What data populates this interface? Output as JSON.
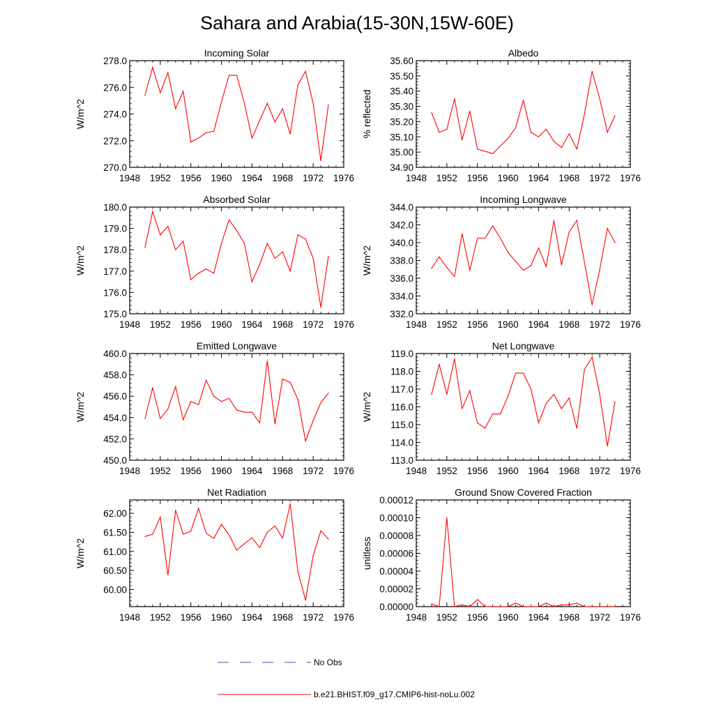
{
  "title": "Sahara and Arabia(15-30N,15W-60E)",
  "colors": {
    "model": "#ff0000",
    "obs": "#4a4aa8"
  },
  "legend": {
    "obs_label": "No Obs",
    "model_label": "b.e21.BHIST.f09_g17.CMIP6-hist-noLu.002"
  },
  "chart_data": [
    {
      "type": "line",
      "title": "Incoming Solar",
      "xlabel": "",
      "ylabel": "W/m^2",
      "xlim": [
        1948,
        1976
      ],
      "ylim": [
        270.0,
        278.0
      ],
      "xticks": [
        "1948",
        "1952",
        "1956",
        "1960",
        "1964",
        "1968",
        "1972",
        "1976"
      ],
      "yticks": [
        "270.0",
        "272.0",
        "274.0",
        "276.0",
        "278.0"
      ],
      "series": [
        {
          "x": [
            1950,
            1951,
            1952,
            1953,
            1954,
            1955,
            1956,
            1957,
            1958,
            1959,
            1960,
            1961,
            1962,
            1963,
            1964,
            1965,
            1966,
            1967,
            1968,
            1969,
            1970,
            1971,
            1972,
            1973,
            1974
          ],
          "values": [
            275.4,
            277.5,
            275.6,
            277.1,
            274.4,
            275.7,
            271.9,
            272.2,
            272.6,
            272.7,
            274.9,
            276.9,
            276.9,
            274.8,
            272.2,
            273.5,
            274.8,
            273.4,
            274.4,
            272.5,
            276.2,
            277.2,
            274.8,
            270.5,
            274.7
          ]
        }
      ]
    },
    {
      "type": "line",
      "title": "Albedo",
      "xlabel": "",
      "ylabel": "% reflected",
      "xlim": [
        1948,
        1976
      ],
      "ylim": [
        34.9,
        35.6
      ],
      "xticks": [
        "1948",
        "1952",
        "1956",
        "1960",
        "1964",
        "1968",
        "1972",
        "1976"
      ],
      "yticks": [
        "34.90",
        "35.00",
        "35.10",
        "35.20",
        "35.30",
        "35.40",
        "35.50",
        "35.60"
      ],
      "series": [
        {
          "x": [
            1950,
            1951,
            1952,
            1953,
            1954,
            1955,
            1956,
            1958,
            1960,
            1961,
            1962,
            1963,
            1964,
            1965,
            1966,
            1967,
            1968,
            1969,
            1970,
            1971,
            1972,
            1973,
            1974
          ],
          "values": [
            35.26,
            35.13,
            35.15,
            35.35,
            35.08,
            35.27,
            35.02,
            34.99,
            35.09,
            35.16,
            35.34,
            35.13,
            35.1,
            35.15,
            35.07,
            35.03,
            35.12,
            35.02,
            35.25,
            35.53,
            35.35,
            35.13,
            35.24
          ]
        }
      ]
    },
    {
      "type": "line",
      "title": "Absorbed Solar",
      "xlabel": "",
      "ylabel": "W/m^2",
      "xlim": [
        1948,
        1976
      ],
      "ylim": [
        175.0,
        180.0
      ],
      "xticks": [
        "1948",
        "1952",
        "1956",
        "1960",
        "1964",
        "1968",
        "1972",
        "1976"
      ],
      "yticks": [
        "175.0",
        "176.0",
        "177.0",
        "178.0",
        "179.0",
        "180.0"
      ],
      "series": [
        {
          "x": [
            1950,
            1951,
            1952,
            1953,
            1954,
            1955,
            1956,
            1957,
            1958,
            1959,
            1960,
            1961,
            1962,
            1963,
            1964,
            1965,
            1966,
            1967,
            1968,
            1969,
            1970,
            1971,
            1972,
            1973,
            1974
          ],
          "values": [
            178.1,
            179.8,
            178.7,
            179.1,
            178.0,
            178.4,
            176.6,
            176.9,
            177.1,
            176.9,
            178.3,
            179.4,
            178.9,
            178.3,
            176.5,
            177.3,
            178.3,
            177.6,
            177.9,
            177.0,
            178.7,
            178.5,
            177.6,
            175.3,
            177.7
          ]
        }
      ]
    },
    {
      "type": "line",
      "title": "Incoming Longwave",
      "xlabel": "",
      "ylabel": "W/m^2",
      "xlim": [
        1948,
        1976
      ],
      "ylim": [
        332.0,
        344.0
      ],
      "xticks": [
        "1948",
        "1952",
        "1956",
        "1960",
        "1964",
        "1968",
        "1972",
        "1976"
      ],
      "yticks": [
        "332.0",
        "334.0",
        "336.0",
        "338.0",
        "340.0",
        "342.0",
        "344.0"
      ],
      "series": [
        {
          "x": [
            1950,
            1951,
            1952,
            1953,
            1954,
            1955,
            1956,
            1957,
            1958,
            1959,
            1960,
            1961,
            1962,
            1963,
            1964,
            1965,
            1966,
            1967,
            1968,
            1969,
            1970,
            1971,
            1972,
            1973,
            1974
          ],
          "values": [
            337.1,
            338.4,
            337.2,
            336.2,
            341.0,
            336.9,
            340.5,
            340.5,
            341.9,
            340.5,
            338.9,
            337.9,
            336.9,
            337.4,
            339.4,
            337.3,
            342.5,
            337.5,
            341.2,
            342.5,
            337.8,
            333.0,
            337.0,
            341.6,
            340.0
          ]
        }
      ]
    },
    {
      "type": "line",
      "title": "Emitted Longwave",
      "xlabel": "",
      "ylabel": "W/m^2",
      "xlim": [
        1948,
        1976
      ],
      "ylim": [
        450.0,
        460.0
      ],
      "xticks": [
        "1948",
        "1952",
        "1956",
        "1960",
        "1964",
        "1968",
        "1972",
        "1976"
      ],
      "yticks": [
        "450.0",
        "452.0",
        "454.0",
        "456.0",
        "458.0",
        "460.0"
      ],
      "series": [
        {
          "x": [
            1950,
            1951,
            1952,
            1953,
            1954,
            1955,
            1956,
            1957,
            1958,
            1959,
            1960,
            1961,
            1962,
            1963,
            1964,
            1965,
            1966,
            1967,
            1968,
            1969,
            1970,
            1971,
            1972,
            1973,
            1974
          ],
          "values": [
            453.9,
            456.8,
            453.9,
            454.8,
            456.9,
            453.8,
            455.5,
            455.2,
            457.5,
            456.0,
            455.5,
            455.8,
            454.7,
            454.5,
            454.5,
            453.5,
            459.3,
            453.4,
            457.6,
            457.3,
            455.7,
            451.8,
            453.7,
            455.4,
            456.3
          ]
        }
      ]
    },
    {
      "type": "line",
      "title": "Net Longwave",
      "xlabel": "",
      "ylabel": "W/m^2",
      "xlim": [
        1948,
        1976
      ],
      "ylim": [
        113.0,
        119.0
      ],
      "xticks": [
        "1948",
        "1952",
        "1956",
        "1960",
        "1964",
        "1968",
        "1972",
        "1976"
      ],
      "yticks": [
        "113.0",
        "114.0",
        "115.0",
        "116.0",
        "117.0",
        "118.0",
        "119.0"
      ],
      "series": [
        {
          "x": [
            1950,
            1951,
            1952,
            1953,
            1954,
            1955,
            1956,
            1957,
            1958,
            1959,
            1960,
            1961,
            1962,
            1963,
            1964,
            1965,
            1966,
            1967,
            1968,
            1969,
            1970,
            1971,
            1972,
            1973,
            1974
          ],
          "values": [
            116.7,
            118.4,
            116.7,
            118.7,
            115.9,
            116.9,
            115.1,
            114.8,
            115.6,
            115.6,
            116.6,
            117.9,
            117.9,
            117.0,
            115.1,
            116.2,
            116.7,
            115.9,
            116.5,
            114.8,
            118.1,
            118.8,
            116.7,
            113.8,
            116.3
          ]
        }
      ]
    },
    {
      "type": "line",
      "title": "Net Radiation",
      "xlabel": "",
      "ylabel": "W/m^2",
      "xlim": [
        1948,
        1976
      ],
      "ylim": [
        59.55,
        62.35
      ],
      "xticks": [
        "1948",
        "1952",
        "1956",
        "1960",
        "1964",
        "1968",
        "1972",
        "1976"
      ],
      "yticks": [
        "60.00",
        "60.50",
        "61.00",
        "61.50",
        "62.00"
      ],
      "series": [
        {
          "x": [
            1950,
            1951,
            1952,
            1953,
            1954,
            1955,
            1956,
            1957,
            1958,
            1959,
            1960,
            1961,
            1962,
            1963,
            1964,
            1965,
            1966,
            1967,
            1968,
            1969,
            1970,
            1971,
            1972,
            1973,
            1974
          ],
          "values": [
            61.39,
            61.45,
            61.9,
            60.38,
            62.08,
            61.45,
            61.53,
            62.13,
            61.48,
            61.34,
            61.71,
            61.43,
            61.03,
            61.2,
            61.36,
            61.1,
            61.5,
            61.67,
            61.35,
            62.25,
            60.47,
            59.72,
            60.89,
            61.54,
            61.32
          ]
        }
      ]
    },
    {
      "type": "line",
      "title": "Ground Snow Covered Fraction",
      "xlabel": "",
      "ylabel": "unitless",
      "xlim": [
        1948,
        1976
      ],
      "ylim": [
        0.0,
        0.00012
      ],
      "xticks": [
        "1948",
        "1952",
        "1956",
        "1960",
        "1964",
        "1968",
        "1972",
        "1976"
      ],
      "yticks": [
        "0.00000",
        "0.00002",
        "0.00004",
        "0.00006",
        "0.00008",
        "0.00010",
        "0.00012"
      ],
      "series": [
        {
          "x": [
            1950,
            1951,
            1952,
            1953,
            1954,
            1955,
            1956,
            1957,
            1958,
            1959,
            1960,
            1961,
            1962,
            1963,
            1964,
            1965,
            1966,
            1967,
            1968,
            1969,
            1970,
            1971,
            1972,
            1973,
            1974
          ],
          "values": [
            3e-06,
            0.0,
            0.0001,
            0.0,
            2e-06,
            0.0,
            8e-06,
            0.0,
            0.0,
            0.0,
            0.0,
            4e-06,
            0.0,
            0.0,
            0.0,
            4e-06,
            0.0,
            2e-06,
            2e-06,
            4e-06,
            0.0,
            0.0,
            0.0,
            0.0,
            0.0
          ]
        }
      ]
    }
  ]
}
